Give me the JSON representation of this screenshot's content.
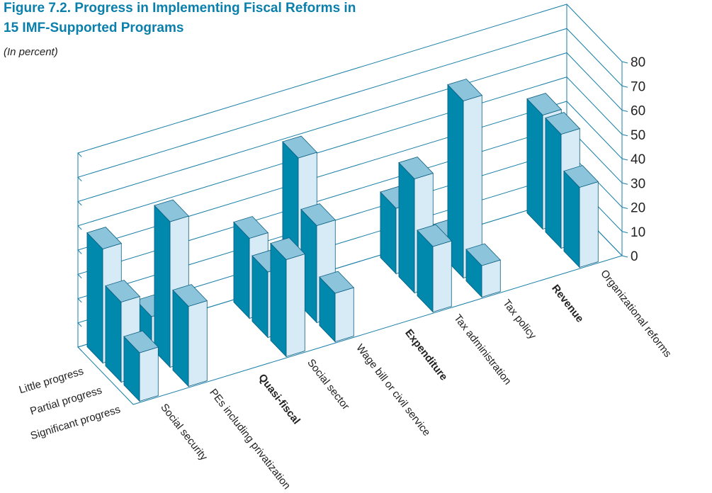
{
  "chart_data": {
    "type": "bar3d",
    "title": "Figure 7.2. Progress in Implementing Fiscal Reforms in 15 IMF-Supported Programs",
    "subtitle": "(In percent)",
    "categories": [
      "Social security",
      "PEs including privatization",
      "Quasi-fiscal",
      "Social sector",
      "Wage bill or civil service",
      "Expenditure",
      "Tax administration",
      "Tax policy",
      "Revenue",
      "Organizational reforms"
    ],
    "series": [
      {
        "name": "Little progress",
        "values": [
          47,
          13,
          null,
          33,
          60,
          null,
          27,
          7,
          null,
          47
        ]
      },
      {
        "name": "Partial progress",
        "values": [
          33,
          60,
          null,
          27,
          40,
          null,
          47,
          73,
          null,
          47
        ]
      },
      {
        "name": "Significant progress",
        "values": [
          20,
          33,
          null,
          40,
          20,
          null,
          27,
          13,
          null,
          33
        ]
      }
    ],
    "colors": {
      "side": "#0088ad",
      "face": "#d7ebf6",
      "top": "#8cc4dc"
    },
    "ylim": [
      0,
      80
    ],
    "yticks": [
      0,
      10,
      20,
      30,
      40,
      50,
      60,
      70,
      80
    ],
    "grid": true
  }
}
